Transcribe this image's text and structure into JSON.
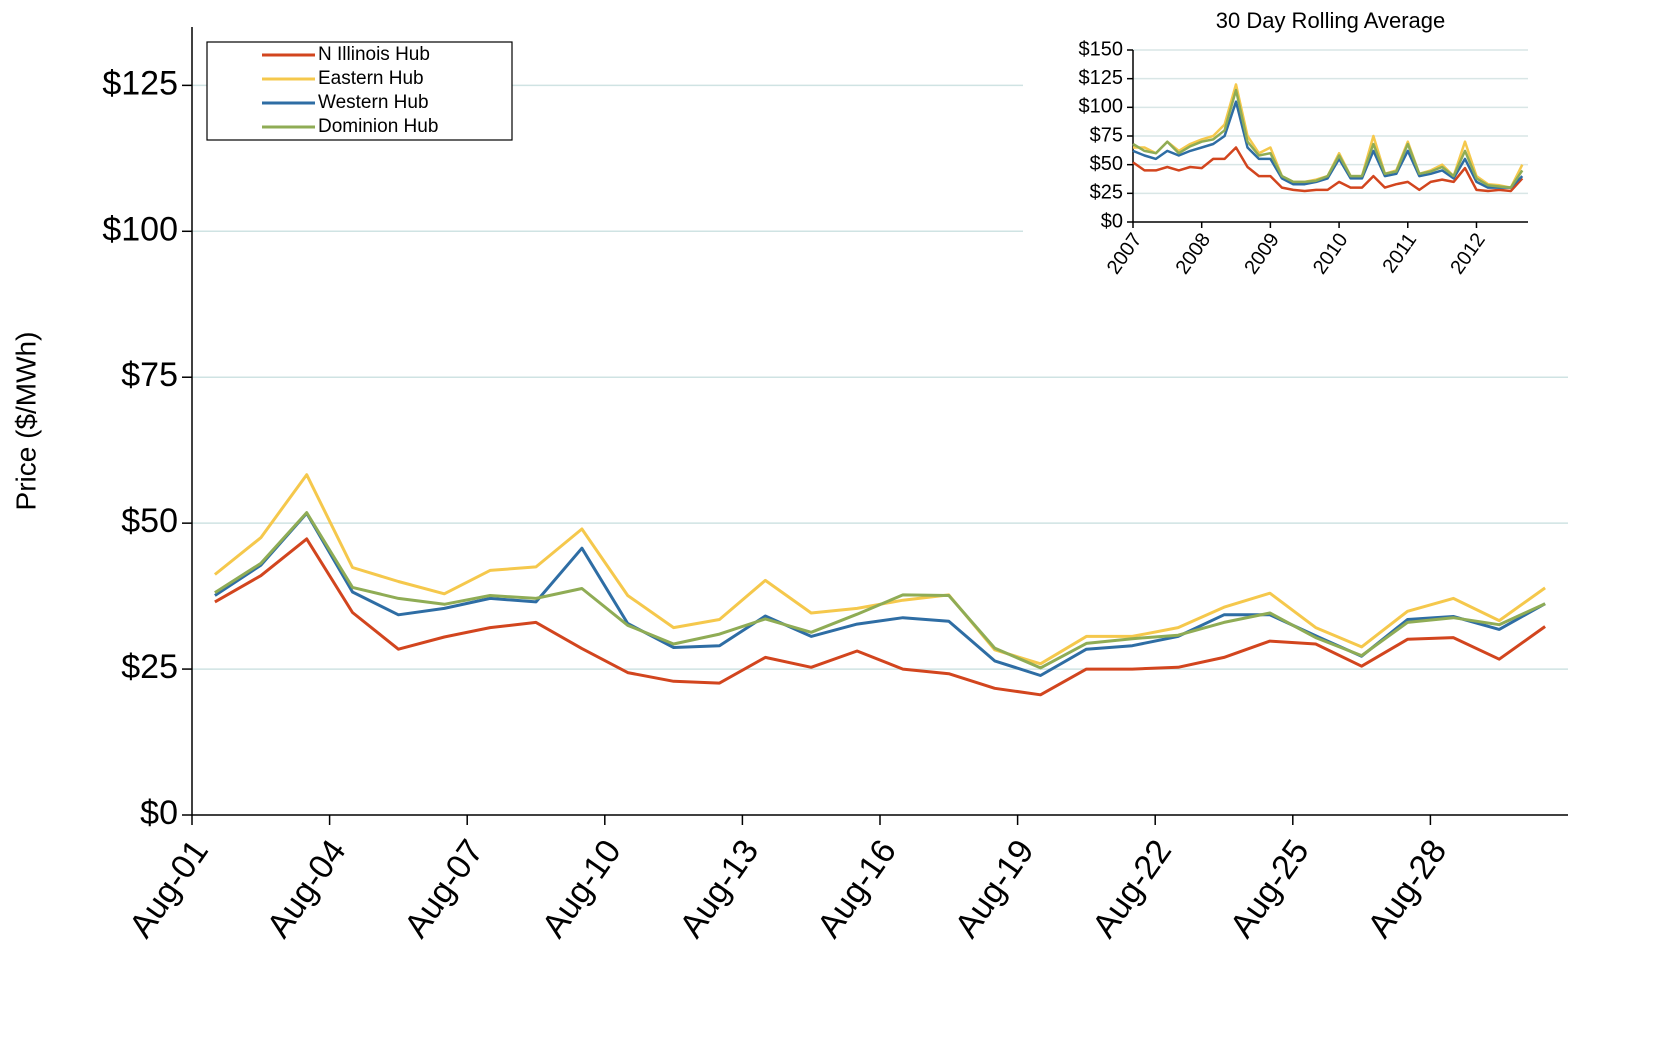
{
  "chart_data": [
    {
      "type": "line",
      "y_label": "Price ($/MWh)",
      "categories": [
        "Aug-01",
        null,
        null,
        "Aug-04",
        null,
        null,
        "Aug-07",
        null,
        null,
        "Aug-10",
        null,
        null,
        "Aug-13",
        null,
        null,
        "Aug-16",
        null,
        null,
        "Aug-19",
        null,
        null,
        "Aug-22",
        null,
        null,
        "Aug-25",
        null,
        null,
        "Aug-28",
        null,
        null
      ],
      "series": [
        {
          "name": "N Illinois Hub",
          "color": "#d2451e",
          "values": [
            36.5,
            41,
            47.3,
            34.7,
            28.4,
            30.5,
            32.1,
            33,
            28.5,
            24.4,
            22.9,
            22.6,
            27,
            25.3,
            28.1,
            25,
            24.2,
            21.7,
            20.6,
            25,
            25,
            25.3,
            27,
            29.8,
            29.3,
            25.5,
            30.1,
            30.4,
            26.7,
            32.3
          ]
        },
        {
          "name": "Eastern Hub",
          "color": "#f5c84c",
          "values": [
            41.2,
            47.5,
            58.3,
            42.4,
            40,
            37.9,
            41.9,
            42.5,
            49,
            37.6,
            32.1,
            33.5,
            40.2,
            34.6,
            35.4,
            36.8,
            37.7,
            28.3,
            25.9,
            30.6,
            30.6,
            32.1,
            35.6,
            38,
            32.1,
            28.8,
            34.9,
            37.1,
            33.3,
            38.9
          ]
        },
        {
          "name": "Western Hub",
          "color": "#2e6da4",
          "values": [
            37.6,
            42.8,
            51.7,
            38.2,
            34.3,
            35.4,
            37.1,
            36.5,
            45.7,
            32.8,
            28.7,
            29,
            34.1,
            30.6,
            32.7,
            33.8,
            33.2,
            26.4,
            23.9,
            28.4,
            29,
            30.6,
            34.3,
            34.3,
            30.7,
            27.2,
            33.5,
            34,
            31.8,
            36.2
          ]
        },
        {
          "name": "Dominion Hub",
          "color": "#8fac55",
          "values": [
            38.1,
            43.1,
            51.8,
            39,
            37.1,
            36.1,
            37.6,
            37.1,
            38.8,
            32.5,
            29.3,
            31,
            33.6,
            31.3,
            34.4,
            37.7,
            37.6,
            28.6,
            25.2,
            29.4,
            30.2,
            30.8,
            33,
            34.6,
            30.4,
            27.3,
            33,
            33.8,
            32.6,
            36.2
          ]
        }
      ],
      "ylim": [
        0,
        135
      ],
      "yticks": [
        {
          "value": 0,
          "label": "$0"
        },
        {
          "value": 25,
          "label": "$25"
        },
        {
          "value": 50,
          "label": "$50"
        },
        {
          "value": 75,
          "label": "$75"
        },
        {
          "value": 100,
          "label": "$100"
        },
        {
          "value": 125,
          "label": "$125"
        }
      ],
      "grid": true,
      "legend": "upper left"
    },
    {
      "type": "line",
      "title": "30 Day Rolling Average",
      "x": [
        2007,
        2007.167,
        2007.333,
        2007.5,
        2007.667,
        2007.833,
        2008,
        2008.167,
        2008.333,
        2008.5,
        2008.667,
        2008.833,
        2009,
        2009.167,
        2009.333,
        2009.5,
        2009.667,
        2009.833,
        2010,
        2010.167,
        2010.333,
        2010.5,
        2010.667,
        2010.833,
        2011,
        2011.167,
        2011.333,
        2011.5,
        2011.667,
        2011.833,
        2012,
        2012.167,
        2012.333,
        2012.5,
        2012.667
      ],
      "series": [
        {
          "name": "N Illinois Hub",
          "color": "#d2451e",
          "values": [
            52,
            45,
            45,
            48,
            45,
            48,
            47,
            55,
            55,
            65,
            48,
            40,
            40,
            30,
            28,
            27,
            28,
            28,
            35,
            30,
            30,
            40,
            30,
            33,
            35,
            28,
            35,
            37,
            35,
            47,
            28,
            27,
            28,
            27,
            38
          ]
        },
        {
          "name": "Eastern Hub",
          "color": "#f5c84c",
          "values": [
            65,
            65,
            60,
            70,
            62,
            68,
            72,
            75,
            85,
            120,
            75,
            60,
            65,
            40,
            35,
            35,
            37,
            40,
            60,
            40,
            40,
            75,
            42,
            45,
            70,
            42,
            45,
            50,
            40,
            70,
            40,
            33,
            32,
            30,
            50
          ]
        },
        {
          "name": "Western Hub",
          "color": "#2e6da4",
          "values": [
            62,
            58,
            55,
            62,
            58,
            62,
            65,
            68,
            75,
            105,
            65,
            55,
            55,
            38,
            33,
            33,
            35,
            38,
            55,
            38,
            38,
            62,
            40,
            42,
            62,
            40,
            42,
            45,
            38,
            55,
            35,
            30,
            30,
            30,
            40
          ]
        },
        {
          "name": "Dominion Hub",
          "color": "#8fac55",
          "values": [
            68,
            62,
            60,
            70,
            60,
            66,
            70,
            72,
            80,
            115,
            70,
            58,
            60,
            40,
            35,
            35,
            36,
            40,
            58,
            40,
            40,
            68,
            42,
            44,
            68,
            42,
            44,
            48,
            40,
            62,
            38,
            32,
            31,
            30,
            45
          ]
        }
      ],
      "xlim": [
        2007,
        2012.75
      ],
      "xticks": [
        2007,
        2008,
        2009,
        2010,
        2011,
        2012
      ],
      "ylim": [
        0,
        150
      ],
      "yticks": [
        {
          "value": 0,
          "label": "$0"
        },
        {
          "value": 25,
          "label": "$25"
        },
        {
          "value": 50,
          "label": "$50"
        },
        {
          "value": 75,
          "label": "$75"
        },
        {
          "value": 100,
          "label": "$100"
        },
        {
          "value": 125,
          "label": "$125"
        },
        {
          "value": 150,
          "label": "$150"
        }
      ],
      "grid": true
    }
  ]
}
